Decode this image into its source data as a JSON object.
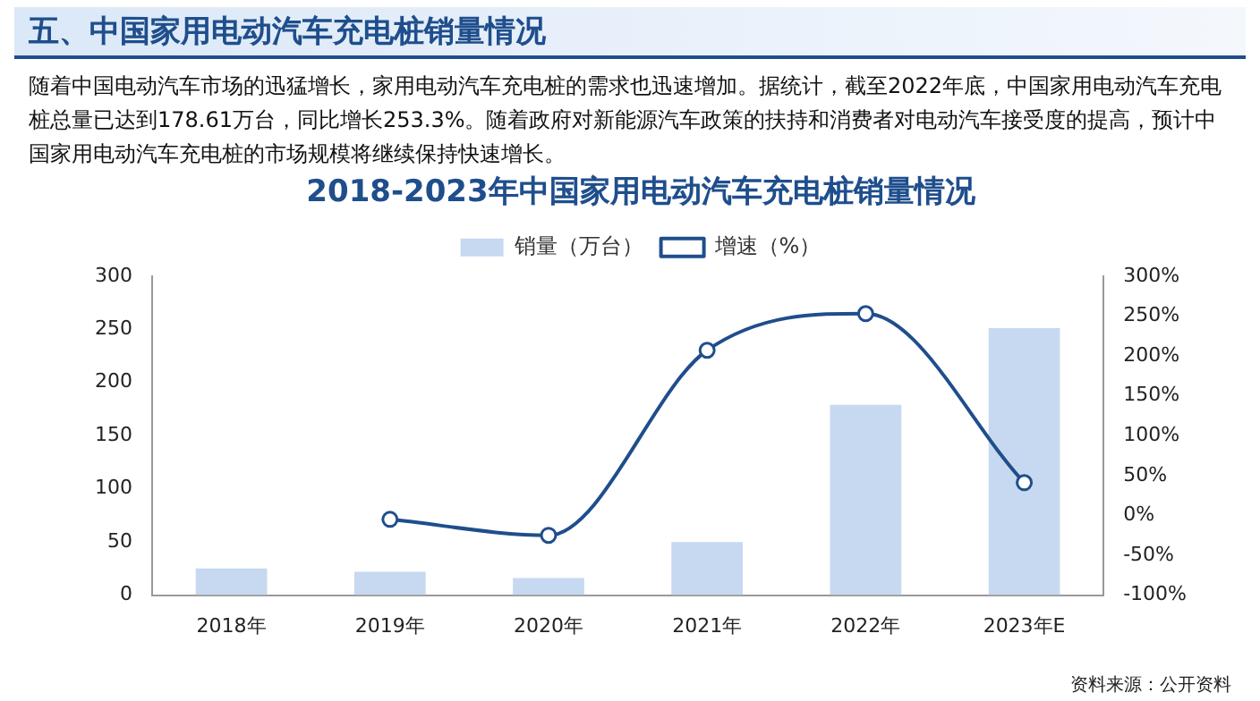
{
  "chart_data": {
    "type": "bar",
    "title": "2018-2023年中国家用电动汽车充电桩销量情况",
    "annotations": [
      "五、中国家用电动汽车充电桩销量情况",
      "随着中国电动汽车市场的迅猛增长，家用电动汽车充电桩的需求也迅速增加。据统计，截至2022年底，中国家用电动汽车充电桩总量已达到178.61万台，同比增长253.3%。随着政府对新能源汽车政策的扶持和消费者对电动汽车接受度的提高，预计中国家用电动汽车充电桩的市场规模将继续保持快速增长。",
      "资料来源：公开资料"
    ],
    "categories": [
      "2018年",
      "2019年",
      "2020年",
      "2021年",
      "2022年",
      "2023年E"
    ],
    "series": [
      {
        "name": "销量（万台）",
        "color": "#c6d9f0",
        "values": [
          25,
          22,
          16,
          50,
          179,
          251
        ]
      },
      {
        "name": "增速（%）",
        "type": "line",
        "axis": "y2",
        "color": "#1f4e8c",
        "marker": "circle",
        "values": [
          null,
          -5,
          -25,
          207,
          253,
          41
        ]
      }
    ],
    "ylim": [
      0,
      300
    ],
    "yticks": [
      0,
      50,
      100,
      150,
      200,
      250,
      300
    ],
    "y2lim": [
      -100,
      300
    ],
    "y2ticks": [
      {
        "value": -100,
        "label": "-100%"
      },
      {
        "value": -50,
        "label": "-50%"
      },
      {
        "value": 0,
        "label": "0%"
      },
      {
        "value": 50,
        "label": "50%"
      },
      {
        "value": 100,
        "label": "100%"
      },
      {
        "value": 150,
        "label": "150%"
      },
      {
        "value": 200,
        "label": "200%"
      },
      {
        "value": 250,
        "label": "250%"
      },
      {
        "value": 300,
        "label": "300%"
      }
    ],
    "legend": "top",
    "grid": false
  }
}
